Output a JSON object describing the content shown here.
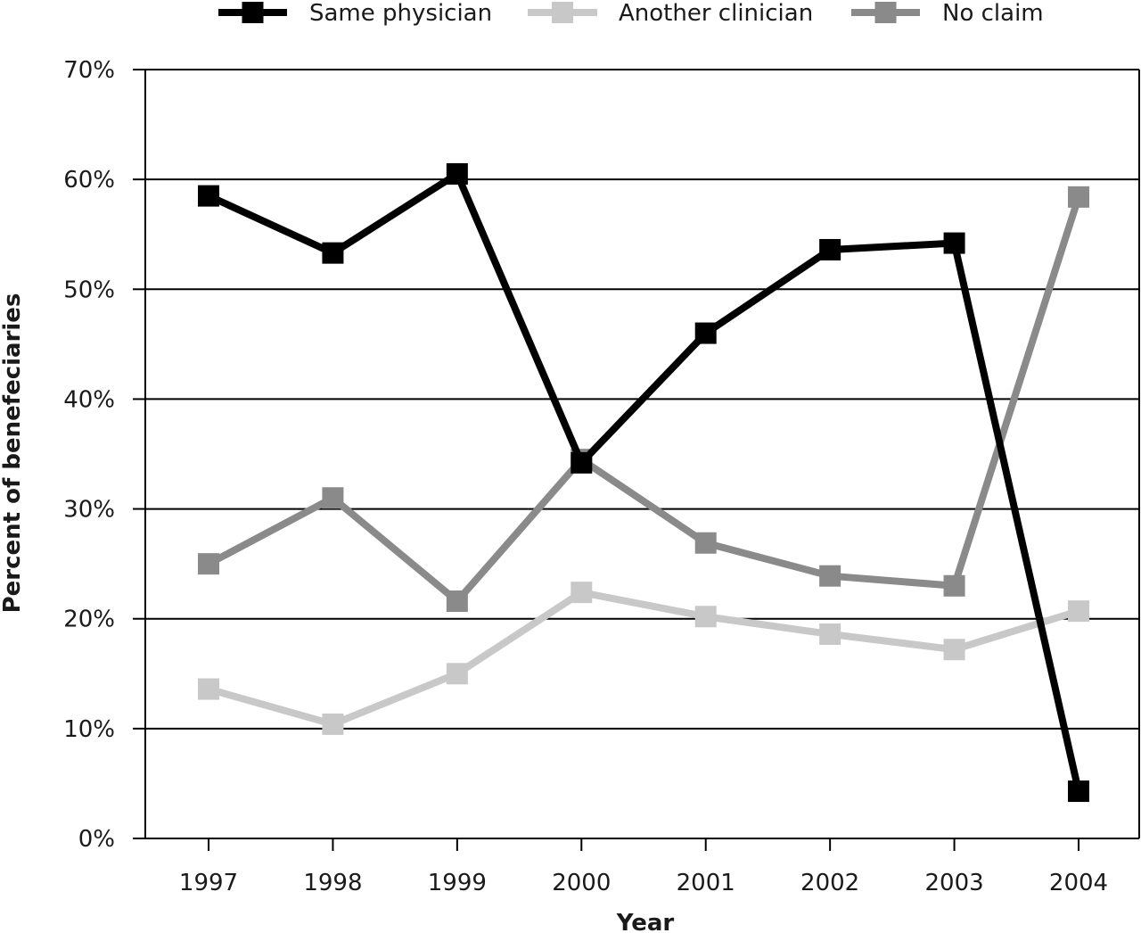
{
  "chart_data": {
    "type": "line",
    "title": "",
    "xlabel": "Year",
    "ylabel": "Percent of benefeciaries",
    "x": [
      "1997",
      "1998",
      "1999",
      "2000",
      "2001",
      "2002",
      "2003",
      "2004"
    ],
    "ylim": [
      0,
      70
    ],
    "yticks": [
      "0%",
      "10%",
      "20%",
      "30%",
      "40%",
      "50%",
      "60%",
      "70%"
    ],
    "grid": "horizontal",
    "legend_position": "top",
    "series": [
      {
        "name": "Same physician",
        "color": "#000000",
        "values": [
          58.5,
          53.3,
          60.5,
          34.2,
          46.0,
          53.6,
          54.2,
          4.3
        ]
      },
      {
        "name": "Another clinician",
        "color": "#c8c8c8",
        "values": [
          13.6,
          10.4,
          15.0,
          22.4,
          20.2,
          18.6,
          17.2,
          20.7
        ]
      },
      {
        "name": "No claim",
        "color": "#8a8a8a",
        "values": [
          25.0,
          31.0,
          21.6,
          34.5,
          26.9,
          23.9,
          23.0,
          58.4
        ]
      }
    ]
  }
}
